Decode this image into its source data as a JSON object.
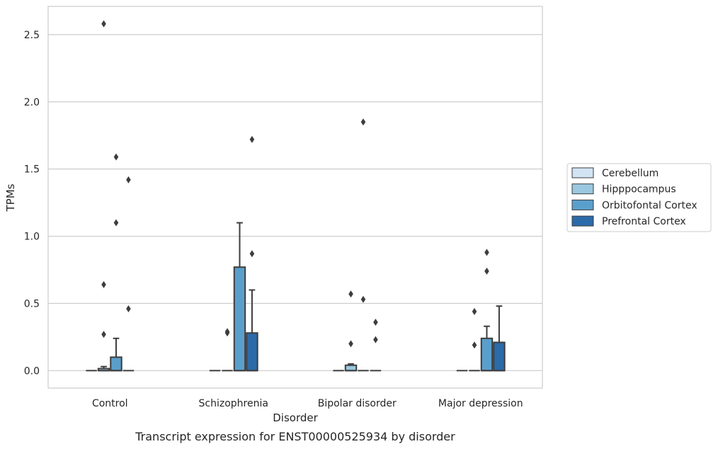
{
  "caption": "Transcript expression for ENST00000525934 by disorder",
  "chart_data": {
    "type": "box",
    "xlabel": "Disorder",
    "ylabel": "TPMs",
    "ylim": [
      -0.13,
      2.71
    ],
    "yticks": [
      0.0,
      0.5,
      1.0,
      1.5,
      2.0,
      2.5
    ],
    "ytick_labels": [
      "0.0",
      "0.5",
      "1.0",
      "1.5",
      "2.0",
      "2.5"
    ],
    "categories": [
      "Control",
      "Schizophrenia",
      "Bipolar disorder",
      "Major depression"
    ],
    "grid": true,
    "legend_position": "right",
    "series": [
      {
        "name": "Cerebellum",
        "color": "#d2e3f3",
        "boxes": [
          {
            "whislo": 0,
            "q1": 0,
            "med": 0,
            "q3": 0,
            "whishi": 0,
            "fliers": []
          },
          {
            "whislo": 0,
            "q1": 0,
            "med": 0,
            "q3": 0,
            "whishi": 0,
            "fliers": []
          },
          {
            "whislo": 0,
            "q1": 0,
            "med": 0,
            "q3": 0,
            "whishi": 0,
            "fliers": []
          },
          {
            "whislo": 0,
            "q1": 0,
            "med": 0,
            "q3": 0,
            "whishi": 0,
            "fliers": []
          }
        ]
      },
      {
        "name": "Hipppocampus",
        "color": "#9ac8e0",
        "boxes": [
          {
            "whislo": 0,
            "q1": 0,
            "med": 0,
            "q3": 0.015,
            "whishi": 0.03,
            "fliers": [
              0.27,
              0.64,
              2.58
            ]
          },
          {
            "whislo": 0,
            "q1": 0,
            "med": 0,
            "q3": 0,
            "whishi": 0,
            "fliers": [
              0.28,
              0.29
            ]
          },
          {
            "whislo": 0,
            "q1": 0,
            "med": 0,
            "q3": 0.04,
            "whishi": 0.05,
            "fliers": [
              0.2,
              0.57
            ]
          },
          {
            "whislo": 0,
            "q1": 0,
            "med": 0,
            "q3": 0,
            "whishi": 0,
            "fliers": [
              0.19,
              0.44
            ]
          }
        ]
      },
      {
        "name": "Orbitofontal Cortex",
        "color": "#5a9fcc",
        "boxes": [
          {
            "whislo": 0,
            "q1": 0,
            "med": 0,
            "q3": 0.1,
            "whishi": 0.24,
            "fliers": [
              1.1,
              1.59
            ]
          },
          {
            "whislo": 0,
            "q1": 0,
            "med": 0,
            "q3": 0.77,
            "whishi": 1.1,
            "fliers": []
          },
          {
            "whislo": 0,
            "q1": 0,
            "med": 0,
            "q3": 0,
            "whishi": 0,
            "fliers": [
              0.53,
              1.85
            ]
          },
          {
            "whislo": 0,
            "q1": 0,
            "med": 0,
            "q3": 0.24,
            "whishi": 0.33,
            "fliers": [
              0.74,
              0.88
            ]
          }
        ]
      },
      {
        "name": "Prefrontal Cortex",
        "color": "#2c6aa9",
        "boxes": [
          {
            "whislo": 0,
            "q1": 0,
            "med": 0,
            "q3": 0,
            "whishi": 0,
            "fliers": [
              0.46,
              1.42
            ]
          },
          {
            "whislo": 0,
            "q1": 0,
            "med": 0,
            "q3": 0.28,
            "whishi": 0.6,
            "fliers": [
              0.87,
              1.72
            ]
          },
          {
            "whislo": 0,
            "q1": 0,
            "med": 0,
            "q3": 0,
            "whishi": 0,
            "fliers": [
              0.23,
              0.36
            ]
          },
          {
            "whislo": 0,
            "q1": 0,
            "med": 0,
            "q3": 0.21,
            "whishi": 0.48,
            "fliers": []
          }
        ]
      }
    ]
  }
}
